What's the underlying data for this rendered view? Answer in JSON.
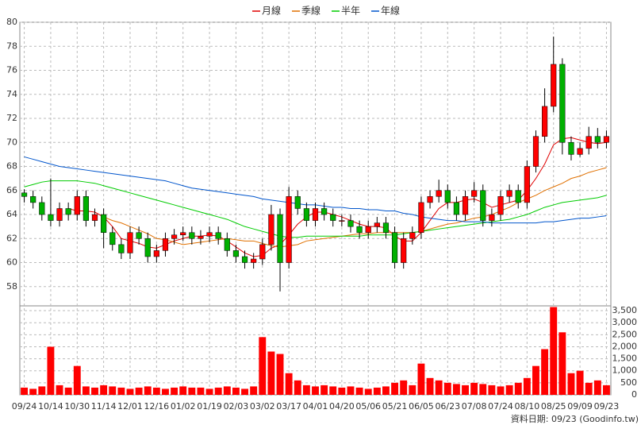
{
  "chart_data": [
    {
      "type": "candlestick",
      "up_color": "#ff0000",
      "down_color": "#00b000",
      "ylim": [
        56.4,
        80
      ],
      "yticks": [
        58,
        60,
        62,
        64,
        66,
        68,
        70,
        72,
        74,
        76,
        78,
        80
      ],
      "grid": true,
      "legend": "top",
      "open": [
        65.8,
        65.5,
        65,
        64,
        63.5,
        64.5,
        64,
        65.5,
        63.5,
        64,
        62.5,
        61.5,
        60.8,
        62.5,
        62,
        60.5,
        61,
        62,
        62.3,
        62.5,
        62,
        62.2,
        62.5,
        62,
        61,
        60.5,
        60,
        60.3,
        61.5,
        64,
        60,
        65.5,
        64.5,
        63.5,
        64.5,
        64,
        63.5,
        63.5,
        63,
        62.5,
        63,
        63.3,
        62.5,
        60,
        62,
        62.5,
        65,
        65.5,
        66,
        65,
        64,
        65.5,
        66,
        63.5,
        64,
        65.5,
        66,
        65,
        68,
        70.5,
        73,
        76.5,
        70,
        69,
        69.5,
        70.5,
        70
      ],
      "high": [
        66.1,
        66,
        65.5,
        67,
        65,
        65,
        66,
        66,
        64.5,
        64.5,
        63,
        62,
        63,
        63,
        62.5,
        61.5,
        62.5,
        62.8,
        63,
        63,
        62.7,
        63,
        63,
        62.5,
        61.5,
        61,
        60.8,
        62,
        64.8,
        64.5,
        66.3,
        66,
        65,
        65,
        65,
        64.5,
        64,
        64,
        63.5,
        63.5,
        63.8,
        63.8,
        63,
        62.5,
        63,
        65.5,
        66,
        66.9,
        66.5,
        65.5,
        66,
        66.7,
        66.5,
        64.5,
        66,
        66.5,
        66.5,
        68.5,
        71,
        74.5,
        78.8,
        77,
        70.5,
        70,
        71.3,
        71.2,
        71
      ],
      "low": [
        65,
        64.5,
        63.5,
        63,
        63,
        63.5,
        63.5,
        63,
        63,
        61.2,
        61,
        60.3,
        60.3,
        61.5,
        60,
        60,
        60.5,
        61.5,
        61.8,
        61.5,
        61.5,
        61.7,
        61.5,
        60.5,
        60,
        59.5,
        59.5,
        59.8,
        61,
        57.6,
        59.5,
        64,
        63,
        63,
        63.5,
        63,
        63,
        62.5,
        62,
        62,
        62.5,
        62,
        59.5,
        59.5,
        61.5,
        62,
        64.5,
        65,
        64.5,
        63.5,
        63.5,
        65,
        63,
        63,
        63.5,
        65,
        64.5,
        64.5,
        67.5,
        70,
        72.5,
        69,
        68.5,
        68.8,
        69,
        69.5,
        69.5
      ],
      "close": [
        65.5,
        65,
        64,
        63.5,
        64.5,
        64,
        65.5,
        63.5,
        64,
        62.5,
        61.5,
        60.8,
        62.5,
        62,
        60.5,
        61,
        62,
        62.3,
        62.5,
        62,
        62.2,
        62.5,
        62,
        61,
        60.5,
        60,
        60.3,
        61.5,
        64,
        60,
        65.5,
        64.5,
        63.5,
        64.5,
        64,
        63.5,
        63.5,
        63,
        62.5,
        63,
        63.3,
        62.5,
        60,
        62,
        62.5,
        65,
        65.5,
        66,
        65,
        64,
        65.5,
        66,
        63.5,
        64,
        65.5,
        66,
        65,
        68,
        70.5,
        73,
        76.5,
        70,
        69,
        69.5,
        70.5,
        70,
        70.5
      ],
      "series": [
        {
          "name": "月線",
          "color": "#e00000",
          "values": [
            null,
            null,
            null,
            null,
            null,
            64.5,
            64.3,
            64.3,
            64.2,
            63.8,
            63,
            62,
            61.8,
            61.6,
            61.3,
            61.2,
            61.5,
            61.8,
            62,
            62.2,
            62.2,
            62.3,
            62.2,
            61.8,
            61.3,
            60.8,
            60.5,
            60.6,
            61.2,
            61.5,
            62.3,
            63.2,
            63.8,
            64.2,
            64.2,
            64,
            63.8,
            63.5,
            63.2,
            63,
            63,
            62.9,
            62.2,
            61.8,
            61.8,
            62.5,
            63.5,
            64.5,
            65,
            65,
            65.2,
            65.3,
            65,
            64.6,
            64.8,
            65,
            65.2,
            66,
            67,
            68.2,
            69.8,
            70.3,
            70.4,
            70.2,
            70,
            69.9,
            70
          ]
        },
        {
          "name": "季線",
          "color": "#e07000",
          "values": [
            null,
            null,
            null,
            null,
            null,
            null,
            null,
            null,
            null,
            63.8,
            63.5,
            63.3,
            63,
            62.7,
            62.4,
            62,
            61.9,
            61.7,
            61.5,
            61.6,
            61.7,
            61.8,
            61.9,
            62,
            61.9,
            61.8,
            61.8,
            61.6,
            61.4,
            61.3,
            61.4,
            61.5,
            61.8,
            61.9,
            62,
            62.1,
            62.2,
            62.3,
            62.4,
            62.4,
            62.5,
            62.5,
            62.5,
            62.5,
            62.5,
            62.6,
            62.8,
            63,
            63.2,
            63.3,
            63.5,
            63.7,
            63.8,
            64,
            64.3,
            64.6,
            65,
            65.3,
            65.6,
            66,
            66.3,
            66.6,
            67,
            67.2,
            67.5,
            67.7,
            67.9
          ]
        },
        {
          "name": "半年",
          "color": "#00cc00",
          "values": [
            66.3,
            66.5,
            66.7,
            66.8,
            66.8,
            66.8,
            66.8,
            66.7,
            66.6,
            66.4,
            66.2,
            66,
            65.8,
            65.6,
            65.4,
            65.2,
            65,
            64.8,
            64.6,
            64.4,
            64.2,
            64,
            63.8,
            63.6,
            63.3,
            63,
            62.8,
            62.6,
            62.4,
            62.2,
            62.1,
            62.1,
            62.2,
            62.2,
            62.2,
            62.2,
            62.2,
            62.2,
            62.2,
            62.3,
            62.3,
            62.3,
            62.3,
            62.4,
            62.5,
            62.6,
            62.7,
            62.8,
            62.9,
            63,
            63.1,
            63.2,
            63.3,
            63.4,
            63.5,
            63.6,
            63.8,
            64,
            64.3,
            64.6,
            64.8,
            65,
            65.1,
            65.2,
            65.3,
            65.4,
            65.6
          ]
        },
        {
          "name": "年線",
          "color": "#0055cc",
          "values": [
            68.8,
            68.6,
            68.4,
            68.2,
            68,
            67.9,
            67.8,
            67.7,
            67.6,
            67.5,
            67.4,
            67.3,
            67.2,
            67.1,
            67,
            66.9,
            66.8,
            66.6,
            66.4,
            66.2,
            66.1,
            66,
            65.9,
            65.8,
            65.7,
            65.6,
            65.5,
            65.3,
            65.2,
            65.1,
            65,
            64.9,
            64.8,
            64.8,
            64.7,
            64.6,
            64.6,
            64.5,
            64.5,
            64.4,
            64.4,
            64.3,
            64.3,
            64.1,
            64,
            63.8,
            63.7,
            63.6,
            63.5,
            63.5,
            63.4,
            63.4,
            63.4,
            63.3,
            63.3,
            63.3,
            63.3,
            63.3,
            63.3,
            63.4,
            63.4,
            63.5,
            63.6,
            63.7,
            63.7,
            63.8,
            63.9
          ]
        }
      ]
    },
    {
      "type": "bar",
      "color": "#ff0000",
      "ylim": [
        0,
        3700
      ],
      "grid": true,
      "yticks": [
        0,
        500,
        {
          "value": 1000,
          "label": "1,000"
        },
        {
          "value": 1500,
          "label": "1,500"
        },
        {
          "value": 2000,
          "label": "2,000"
        },
        {
          "value": 2500,
          "label": "2,500"
        },
        {
          "value": 3000,
          "label": "3,000"
        },
        {
          "value": 3500,
          "label": "3,500"
        }
      ],
      "categories": [
        "09/24",
        null,
        null,
        "10/14",
        null,
        null,
        "10/30",
        null,
        null,
        "11/14",
        null,
        null,
        "12/01",
        null,
        null,
        "12/16",
        null,
        null,
        "01/02",
        null,
        null,
        "01/19",
        null,
        null,
        "02/03",
        null,
        null,
        "03/02",
        null,
        null,
        "03/17",
        null,
        null,
        "04/01",
        null,
        null,
        "04/20",
        null,
        null,
        "05/06",
        null,
        null,
        "05/21",
        null,
        null,
        "06/05",
        null,
        null,
        "06/23",
        null,
        null,
        "07/08",
        null,
        null,
        "07/24",
        null,
        null,
        "08/10",
        null,
        null,
        "08/25",
        null,
        null,
        "09/09",
        null,
        null,
        "09/23"
      ],
      "values": [
        300,
        250,
        350,
        2000,
        400,
        300,
        1200,
        350,
        300,
        400,
        350,
        300,
        250,
        300,
        350,
        300,
        250,
        300,
        350,
        300,
        300,
        250,
        300,
        350,
        300,
        250,
        350,
        2400,
        1800,
        1700,
        900,
        600,
        400,
        350,
        400,
        350,
        300,
        350,
        300,
        250,
        300,
        350,
        500,
        600,
        400,
        1300,
        700,
        600,
        500,
        450,
        400,
        500,
        450,
        400,
        350,
        400,
        500,
        700,
        1200,
        1900,
        3650,
        2600,
        900,
        1000,
        500,
        600,
        400
      ]
    }
  ],
  "footer": "資料日期: 09/23 (Goodinfo.tw)"
}
